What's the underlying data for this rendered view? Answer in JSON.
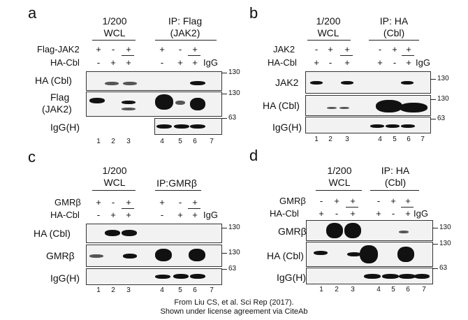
{
  "credit": {
    "line1": "From Liu CS, et al. Sci Rep (2017).",
    "line2": "Shown under license agreement via CiteAb"
  },
  "panels": {
    "a": {
      "letter": "a",
      "wcl": [
        "1/200",
        "WCL"
      ],
      "ip": [
        "IP: Flag",
        "(JAK2)"
      ],
      "row1": {
        "label": "Flag-JAK2",
        "signs": [
          "+",
          "-",
          "+",
          "+",
          "-",
          "+"
        ]
      },
      "row2": {
        "label": "HA-Cbl",
        "signs": [
          "-",
          "+",
          "+",
          "-",
          "+",
          "+"
        ],
        "igg": "IgG"
      },
      "blots": [
        "HA (Cbl)",
        "Flag",
        "(JAK2)",
        "IgG(H)"
      ],
      "mw": [
        "130",
        "130",
        "63"
      ],
      "lanes": [
        "1",
        "2",
        "3",
        "4",
        "5",
        "6",
        "7"
      ]
    },
    "b": {
      "letter": "b",
      "wcl": [
        "1/200",
        "WCL"
      ],
      "ip": [
        "IP: HA",
        "(Cbl)"
      ],
      "row1": {
        "label": "JAK2",
        "signs": [
          "-",
          "+",
          "+",
          "-",
          "+",
          "+"
        ]
      },
      "row2": {
        "label": "HA-Cbl",
        "signs": [
          "+",
          "-",
          "+",
          "+",
          "-",
          "+"
        ],
        "igg": "IgG"
      },
      "blots": [
        "JAK2",
        "HA (Cbl)",
        "IgG(H)"
      ],
      "mw": [
        "130",
        "130",
        "63"
      ],
      "lanes": [
        "1",
        "2",
        "3",
        "4",
        "5",
        "6",
        "7"
      ]
    },
    "c": {
      "letter": "c",
      "wcl": [
        "1/200",
        "WCL"
      ],
      "ip": [
        "IP:GMRβ"
      ],
      "row1": {
        "label": "GMRβ",
        "signs": [
          "+",
          "-",
          "+",
          "+",
          "-",
          "+"
        ]
      },
      "row2": {
        "label": "HA-Cbl",
        "signs": [
          "-",
          "+",
          "+",
          "-",
          "+",
          "+"
        ],
        "igg": "IgG"
      },
      "blots": [
        "HA (Cbl)",
        "GMRβ",
        "IgG(H)"
      ],
      "mw": [
        "130",
        "130",
        "63"
      ],
      "lanes": [
        "1",
        "2",
        "3",
        "4",
        "5",
        "6",
        "7"
      ]
    },
    "d": {
      "letter": "d",
      "wcl": [
        "1/200",
        "WCL"
      ],
      "ip": [
        "IP: HA",
        "(Cbl)"
      ],
      "row1": {
        "label": "GMRβ",
        "signs": [
          "-",
          "+",
          "+",
          "-",
          "+",
          "+"
        ]
      },
      "row2": {
        "label": "HA-Cbl",
        "signs": [
          "+",
          "-",
          "+",
          "+",
          "-",
          "+"
        ],
        "igg": "IgG"
      },
      "blots": [
        "GMRβ",
        "HA (Cbl)",
        "IgG(H)"
      ],
      "mw": [
        "130",
        "130",
        "63"
      ],
      "lanes": [
        "1",
        "2",
        "3",
        "4",
        "5",
        "6",
        "7"
      ]
    }
  }
}
